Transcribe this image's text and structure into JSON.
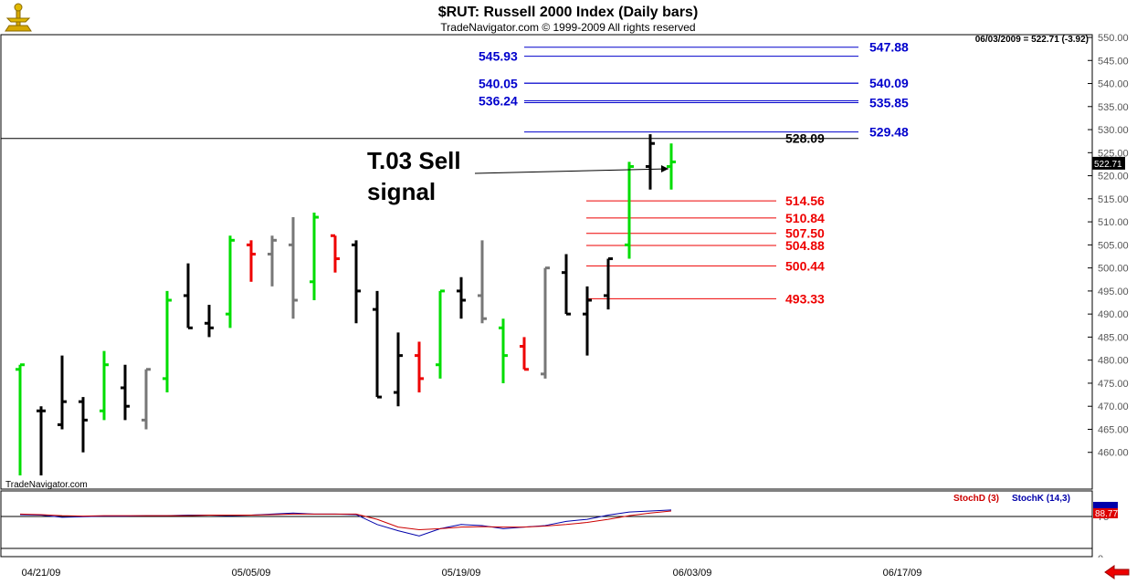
{
  "chart_data": {
    "type": "bar",
    "title": "$RUT:  Russell 2000 Index  (Daily bars)",
    "subtitle": "TradeNavigator.com © 1999-2009 All rights reserved",
    "last_quote": "06/03/2009 = 522.71 (-3.92)",
    "last_price_tag": "522.71",
    "watermark": "TradeNavigator.com",
    "y_axis": {
      "min": 455,
      "max": 550,
      "ticks": [
        "460.00",
        "465.00",
        "470.00",
        "475.00",
        "480.00",
        "485.00",
        "490.00",
        "495.00",
        "500.00",
        "505.00",
        "510.00",
        "515.00",
        "520.00",
        "525.00",
        "530.00",
        "535.00",
        "540.00",
        "545.00",
        "550.00"
      ]
    },
    "x_axis": {
      "ticks": [
        {
          "label": "04/21/09",
          "bar": 1
        },
        {
          "label": "05/05/09",
          "bar": 11
        },
        {
          "label": "05/19/09",
          "bar": 21
        },
        {
          "label": "06/03/09",
          "bar": 32
        },
        {
          "label": "06/17/09",
          "bar": 42
        }
      ]
    },
    "bars": [
      {
        "h": 479,
        "l": 455,
        "o": 478,
        "c": 479,
        "color": "#00dd00"
      },
      {
        "h": 470,
        "l": 455,
        "o": 469,
        "c": 469,
        "color": "#000000"
      },
      {
        "h": 481,
        "l": 465,
        "o": 466,
        "c": 471,
        "color": "#000000"
      },
      {
        "h": 472,
        "l": 460,
        "o": 471,
        "c": 467,
        "color": "#000000"
      },
      {
        "h": 482,
        "l": 467,
        "o": 469,
        "c": 479,
        "color": "#00dd00"
      },
      {
        "h": 479,
        "l": 467,
        "o": 474,
        "c": 470,
        "color": "#000000"
      },
      {
        "h": 478,
        "l": 465,
        "o": 467,
        "c": 478,
        "color": "#777777"
      },
      {
        "h": 495,
        "l": 473,
        "o": 476,
        "c": 493,
        "color": "#00dd00"
      },
      {
        "h": 501,
        "l": 487,
        "o": 494,
        "c": 487,
        "color": "#000000"
      },
      {
        "h": 492,
        "l": 485,
        "o": 488,
        "c": 487,
        "color": "#000000"
      },
      {
        "h": 507,
        "l": 487,
        "o": 490,
        "c": 506,
        "color": "#00dd00"
      },
      {
        "h": 506,
        "l": 497,
        "o": 505,
        "c": 503,
        "color": "#ee0000"
      },
      {
        "h": 507,
        "l": 496,
        "o": 503,
        "c": 506,
        "color": "#777777"
      },
      {
        "h": 511,
        "l": 489,
        "o": 505,
        "c": 493,
        "color": "#777777"
      },
      {
        "h": 512,
        "l": 493,
        "o": 497,
        "c": 511,
        "color": "#00dd00"
      },
      {
        "h": 507,
        "l": 499,
        "o": 507,
        "c": 502,
        "color": "#ee0000"
      },
      {
        "h": 506,
        "l": 488,
        "o": 505,
        "c": 495,
        "color": "#000000"
      },
      {
        "h": 495,
        "l": 472,
        "o": 491,
        "c": 472,
        "color": "#000000"
      },
      {
        "h": 486,
        "l": 470,
        "o": 473,
        "c": 481,
        "color": "#000000"
      },
      {
        "h": 484,
        "l": 473,
        "o": 481,
        "c": 476,
        "color": "#ee0000"
      },
      {
        "h": 495,
        "l": 476,
        "o": 479,
        "c": 495,
        "color": "#00dd00"
      },
      {
        "h": 498,
        "l": 489,
        "o": 495,
        "c": 493,
        "color": "#000000"
      },
      {
        "h": 506,
        "l": 488,
        "o": 494,
        "c": 489,
        "color": "#777777"
      },
      {
        "h": 489,
        "l": 475,
        "o": 487,
        "c": 481,
        "color": "#00dd00"
      },
      {
        "h": 485,
        "l": 478,
        "o": 483,
        "c": 478,
        "color": "#ee0000"
      },
      {
        "h": 500,
        "l": 476,
        "o": 477,
        "c": 500,
        "color": "#777777"
      },
      {
        "h": 503,
        "l": 490,
        "o": 499,
        "c": 490,
        "color": "#000000"
      },
      {
        "h": 496,
        "l": 481,
        "o": 490,
        "c": 493,
        "color": "#000000"
      },
      {
        "h": 502,
        "l": 491,
        "o": 494,
        "c": 502,
        "color": "#000000"
      },
      {
        "h": 523,
        "l": 502,
        "o": 505,
        "c": 522,
        "color": "#00dd00"
      },
      {
        "h": 529,
        "l": 517,
        "o": 522,
        "c": 527,
        "color": "#000000"
      },
      {
        "h": 527,
        "l": 517,
        "o": 522,
        "c": 523,
        "color": "#00dd00"
      }
    ],
    "levels_black": [
      {
        "value": 528.09,
        "label": "528.09"
      }
    ],
    "levels_blue": [
      {
        "value": 547.88,
        "label": "547.88",
        "side": "right"
      },
      {
        "value": 545.93,
        "label": "545.93",
        "side": "left"
      },
      {
        "value": 540.09,
        "label": "540.09",
        "side": "right"
      },
      {
        "value": 540.05,
        "label": "540.05",
        "side": "left"
      },
      {
        "value": 536.24,
        "label": "536.24",
        "side": "left"
      },
      {
        "value": 535.85,
        "label": "535.85",
        "side": "right"
      },
      {
        "value": 529.48,
        "label": "529.48",
        "side": "right"
      }
    ],
    "levels_red": [
      {
        "value": 514.56,
        "label": "514.56"
      },
      {
        "value": 510.84,
        "label": "510.84"
      },
      {
        "value": 507.5,
        "label": "507.50"
      },
      {
        "value": 504.88,
        "label": "504.88"
      },
      {
        "value": 500.44,
        "label": "500.44"
      },
      {
        "value": 493.33,
        "label": "493.33"
      }
    ],
    "annotation": {
      "lines": [
        "T.03 Sell",
        "signal"
      ],
      "points_to": 521.5
    },
    "colors": {
      "blue": "#0000cc",
      "red": "#ee0000",
      "black": "#000000"
    },
    "oscillator": {
      "legend_d": "StochD (3)",
      "legend_k": "StochK (14,3)",
      "tick_75": "75",
      "tick_0": "0",
      "value_tag": "88.77",
      "stoch_k": [
        79,
        78,
        74,
        75,
        76,
        76,
        77,
        77,
        78,
        78,
        77,
        78,
        80,
        82,
        80,
        80,
        79,
        60,
        48,
        38,
        52,
        60,
        58,
        52,
        55,
        58,
        66,
        70,
        78,
        84,
        86,
        88
      ],
      "stoch_d": [
        80,
        79,
        77,
        76,
        77,
        77,
        77,
        77,
        77,
        78,
        78,
        78,
        79,
        80,
        80,
        80,
        80,
        70,
        55,
        50,
        52,
        55,
        56,
        55,
        55,
        57,
        60,
        64,
        70,
        77,
        82,
        86
      ]
    }
  }
}
